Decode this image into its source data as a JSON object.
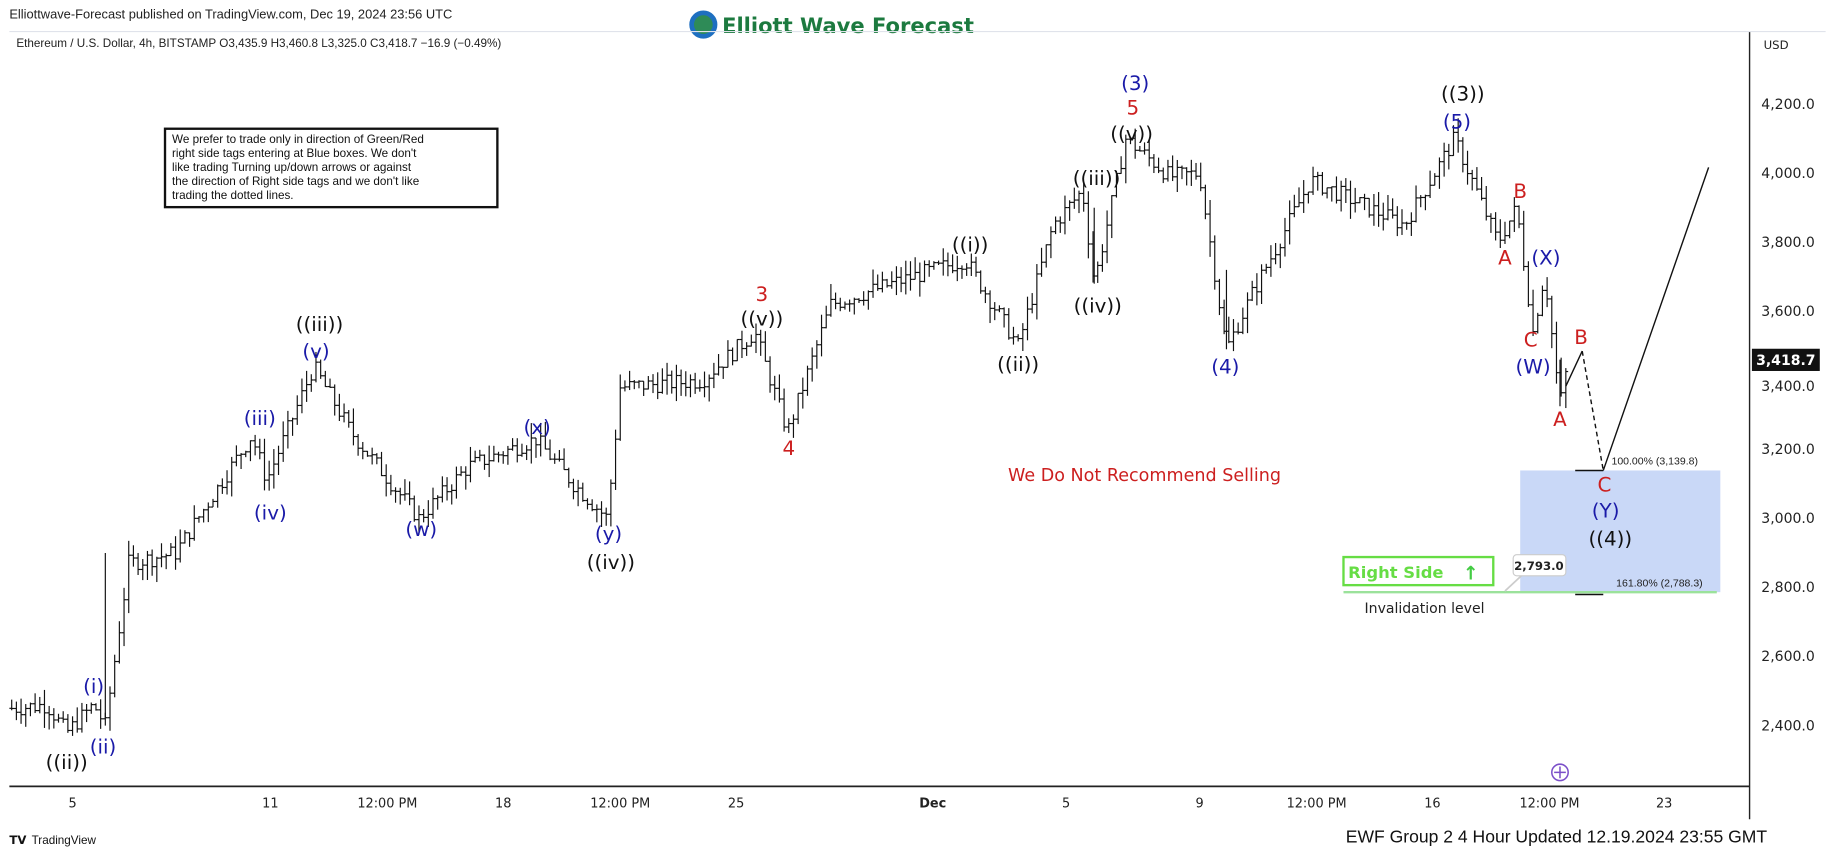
{
  "header": {
    "published": "Elliottwave-Forecast published on TradingView.com, Dec 19, 2024 23:56 UTC",
    "logo_text": "Elliott Wave Forecast",
    "symbol_line": "Ethereum / U.S. Dollar, 4h, BITSTAMP  O3,435.9  H3,460.8  L3,325.0  C3,418.7  −16.9 (−0.49%)"
  },
  "note_box": {
    "lines": [
      "We prefer to trade only in direction of Green/Red",
      "right side tags entering at Blue boxes. We don't",
      "like trading Turning up/down arrows or against",
      "the direction of Right side tags and we don't like",
      "trading the dotted lines."
    ]
  },
  "warning_text": "We Do Not Recommend Selling",
  "right_side_tag": {
    "label": "Right Side",
    "arrow": "↑",
    "color": "#66dd44"
  },
  "invalidation": {
    "label": "Invalidation level",
    "value": "2,793.0"
  },
  "fib": {
    "upper": "100.00% (3,139.8)",
    "lower": "161.80% (2,788.3)"
  },
  "blue_box_color": "#c9d8f7",
  "footer": {
    "brand": "TradingView",
    "updated": "EWF Group 2 4 Hour Updated 12.19.2024 23:55 GMT"
  },
  "chart_data": {
    "type": "ohlc",
    "currency": "USD",
    "current_price": "3,418.7",
    "ylim": [
      2250,
      4350
    ],
    "y_ticks": [
      "4,200.0",
      "4,000.0",
      "3,800.0",
      "3,600.0",
      "3,400.0",
      "3,200.0",
      "3,000.0",
      "2,800.0",
      "2,600.0",
      "2,400.0"
    ],
    "x_ticks": [
      "5",
      "11",
      "12:00 PM",
      "18",
      "12:00 PM",
      "25",
      "Dec",
      "5",
      "9",
      "12:00 PM",
      "16",
      "12:00 PM",
      "23"
    ],
    "pivots": [
      {
        "label": "((ii))",
        "price": 2380
      },
      {
        "label": "(i)",
        "price": 2460
      },
      {
        "label": "(ii)",
        "price": 2400
      },
      {
        "label": "(iii)",
        "price": 3240
      },
      {
        "label": "(iv)",
        "price": 3110
      },
      {
        "label": "(v) ((iii))",
        "price": 3440
      },
      {
        "label": "(w)",
        "price": 3000
      },
      {
        "label": "(x)",
        "price": 3230
      },
      {
        "label": "(y) ((iv))",
        "price": 3000
      },
      {
        "label": "3 ((v))",
        "price": 3540
      },
      {
        "label": "4",
        "price": 3250
      },
      {
        "label": "((i))",
        "price": 3750
      },
      {
        "label": "((ii))",
        "price": 3500
      },
      {
        "label": "((iii))",
        "price": 3950
      },
      {
        "label": "((iv))",
        "price": 3680
      },
      {
        "label": "(3) 5 ((v))",
        "price": 4100
      },
      {
        "label": "(4)",
        "price": 3490
      },
      {
        "label": "((3)) (5)",
        "price": 4100
      },
      {
        "label": "A",
        "price": 3800
      },
      {
        "label": "B",
        "price": 3900
      },
      {
        "label": "C (W)",
        "price": 3540
      },
      {
        "label": "(X)",
        "price": 3710
      },
      {
        "label": "A",
        "price": 3330
      },
      {
        "label": "B",
        "price": 3480
      },
      {
        "label": "C (Y) ((4))",
        "price": 3139.8
      }
    ],
    "wave_labels": [
      {
        "text": "((ii))",
        "color": "#111111"
      },
      {
        "text": "(ii)",
        "color": "#1a1aa8"
      },
      {
        "text": "(i)",
        "color": "#1a1aa8"
      },
      {
        "text": "(iii)",
        "color": "#1a1aa8"
      },
      {
        "text": "(iv)",
        "color": "#1a1aa8"
      },
      {
        "text": "((iii))",
        "color": "#111111"
      },
      {
        "text": "(v)",
        "color": "#1a1aa8"
      },
      {
        "text": "(w)",
        "color": "#1a1aa8"
      },
      {
        "text": "(x)",
        "color": "#1a1aa8"
      },
      {
        "text": "(y)",
        "color": "#1a1aa8"
      },
      {
        "text": "((iv))",
        "color": "#111111"
      },
      {
        "text": "3",
        "color": "#cc1f1f"
      },
      {
        "text": "((v))",
        "color": "#111111"
      },
      {
        "text": "4",
        "color": "#cc1f1f"
      },
      {
        "text": "((i))",
        "color": "#111111"
      },
      {
        "text": "((ii))",
        "color": "#111111"
      },
      {
        "text": "((iii))",
        "color": "#111111"
      },
      {
        "text": "((iv))",
        "color": "#111111"
      },
      {
        "text": "(3)",
        "color": "#1a1aa8"
      },
      {
        "text": "5",
        "color": "#cc1f1f"
      },
      {
        "text": "((v))",
        "color": "#111111"
      },
      {
        "text": "(4)",
        "color": "#1a1aa8"
      },
      {
        "text": "((3))",
        "color": "#111111"
      },
      {
        "text": "(5)",
        "color": "#1a1aa8"
      },
      {
        "text": "B",
        "color": "#cc1f1f"
      },
      {
        "text": "A",
        "color": "#cc1f1f"
      },
      {
        "text": "(X)",
        "color": "#1a1aa8"
      },
      {
        "text": "C",
        "color": "#cc1f1f"
      },
      {
        "text": "(W)",
        "color": "#1a1aa8"
      },
      {
        "text": "B",
        "color": "#cc1f1f"
      },
      {
        "text": "A",
        "color": "#cc1f1f"
      },
      {
        "text": "C",
        "color": "#cc1f1f"
      },
      {
        "text": "(Y)",
        "color": "#1a1aa8"
      },
      {
        "text": "((4))",
        "color": "#111111"
      }
    ]
  }
}
